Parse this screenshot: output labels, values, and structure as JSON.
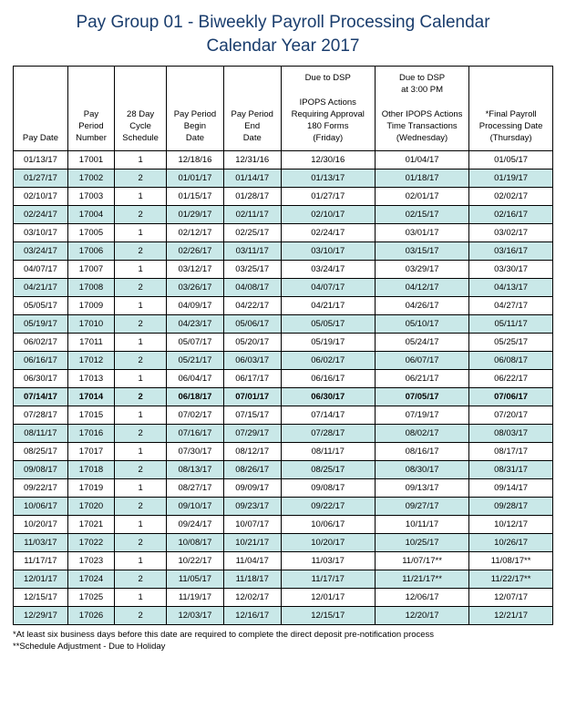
{
  "title": "Pay Group 01 - Biweekly Payroll Processing Calendar",
  "subtitle": "Calendar Year 2017",
  "colors": {
    "heading": "#1a3d6d",
    "shade": "#c9e8e8",
    "border": "#000000",
    "text": "#000000",
    "background": "#ffffff"
  },
  "fontsize": {
    "heading": 19,
    "cell": 9.5,
    "footnote": 9.5
  },
  "col_widths_pct": [
    9.5,
    8,
    9,
    10,
    10,
    17,
    17,
    15
  ],
  "headers": [
    "Pay Date",
    "Pay\nPeriod\nNumber",
    "28 Day\nCycle\nSchedule",
    "Pay Period\nBegin\nDate",
    "Pay Period\nEnd\nDate",
    "Due to DSP\n\nIPOPS Actions\nRequiring Approval\n180 Forms\n(Friday)",
    "Due to DSP\nat 3:00 PM\n\nOther IPOPS Actions\nTime Transactions\n(Wednesday)",
    "*Final Payroll\nProcessing Date\n(Thursday)"
  ],
  "rows": [
    {
      "c": [
        "01/13/17",
        "17001",
        "1",
        "12/18/16",
        "12/31/16",
        "12/30/16",
        "01/04/17",
        "01/05/17"
      ],
      "shade": false,
      "bold": false
    },
    {
      "c": [
        "01/27/17",
        "17002",
        "2",
        "01/01/17",
        "01/14/17",
        "01/13/17",
        "01/18/17",
        "01/19/17"
      ],
      "shade": true,
      "bold": false
    },
    {
      "c": [
        "02/10/17",
        "17003",
        "1",
        "01/15/17",
        "01/28/17",
        "01/27/17",
        "02/01/17",
        "02/02/17"
      ],
      "shade": false,
      "bold": false
    },
    {
      "c": [
        "02/24/17",
        "17004",
        "2",
        "01/29/17",
        "02/11/17",
        "02/10/17",
        "02/15/17",
        "02/16/17"
      ],
      "shade": true,
      "bold": false
    },
    {
      "c": [
        "03/10/17",
        "17005",
        "1",
        "02/12/17",
        "02/25/17",
        "02/24/17",
        "03/01/17",
        "03/02/17"
      ],
      "shade": false,
      "bold": false
    },
    {
      "c": [
        "03/24/17",
        "17006",
        "2",
        "02/26/17",
        "03/11/17",
        "03/10/17",
        "03/15/17",
        "03/16/17"
      ],
      "shade": true,
      "bold": false
    },
    {
      "c": [
        "04/07/17",
        "17007",
        "1",
        "03/12/17",
        "03/25/17",
        "03/24/17",
        "03/29/17",
        "03/30/17"
      ],
      "shade": false,
      "bold": false
    },
    {
      "c": [
        "04/21/17",
        "17008",
        "2",
        "03/26/17",
        "04/08/17",
        "04/07/17",
        "04/12/17",
        "04/13/17"
      ],
      "shade": true,
      "bold": false
    },
    {
      "c": [
        "05/05/17",
        "17009",
        "1",
        "04/09/17",
        "04/22/17",
        "04/21/17",
        "04/26/17",
        "04/27/17"
      ],
      "shade": false,
      "bold": false
    },
    {
      "c": [
        "05/19/17",
        "17010",
        "2",
        "04/23/17",
        "05/06/17",
        "05/05/17",
        "05/10/17",
        "05/11/17"
      ],
      "shade": true,
      "bold": false
    },
    {
      "c": [
        "06/02/17",
        "17011",
        "1",
        "05/07/17",
        "05/20/17",
        "05/19/17",
        "05/24/17",
        "05/25/17"
      ],
      "shade": false,
      "bold": false
    },
    {
      "c": [
        "06/16/17",
        "17012",
        "2",
        "05/21/17",
        "06/03/17",
        "06/02/17",
        "06/07/17",
        "06/08/17"
      ],
      "shade": true,
      "bold": false
    },
    {
      "c": [
        "06/30/17",
        "17013",
        "1",
        "06/04/17",
        "06/17/17",
        "06/16/17",
        "06/21/17",
        "06/22/17"
      ],
      "shade": false,
      "bold": false
    },
    {
      "c": [
        "07/14/17",
        "17014",
        "2",
        "06/18/17",
        "07/01/17",
        "06/30/17",
        "07/05/17",
        "07/06/17"
      ],
      "shade": true,
      "bold": true
    },
    {
      "c": [
        "07/28/17",
        "17015",
        "1",
        "07/02/17",
        "07/15/17",
        "07/14/17",
        "07/19/17",
        "07/20/17"
      ],
      "shade": false,
      "bold": false
    },
    {
      "c": [
        "08/11/17",
        "17016",
        "2",
        "07/16/17",
        "07/29/17",
        "07/28/17",
        "08/02/17",
        "08/03/17"
      ],
      "shade": true,
      "bold": false
    },
    {
      "c": [
        "08/25/17",
        "17017",
        "1",
        "07/30/17",
        "08/12/17",
        "08/11/17",
        "08/16/17",
        "08/17/17"
      ],
      "shade": false,
      "bold": false
    },
    {
      "c": [
        "09/08/17",
        "17018",
        "2",
        "08/13/17",
        "08/26/17",
        "08/25/17",
        "08/30/17",
        "08/31/17"
      ],
      "shade": true,
      "bold": false
    },
    {
      "c": [
        "09/22/17",
        "17019",
        "1",
        "08/27/17",
        "09/09/17",
        "09/08/17",
        "09/13/17",
        "09/14/17"
      ],
      "shade": false,
      "bold": false
    },
    {
      "c": [
        "10/06/17",
        "17020",
        "2",
        "09/10/17",
        "09/23/17",
        "09/22/17",
        "09/27/17",
        "09/28/17"
      ],
      "shade": true,
      "bold": false
    },
    {
      "c": [
        "10/20/17",
        "17021",
        "1",
        "09/24/17",
        "10/07/17",
        "10/06/17",
        "10/11/17",
        "10/12/17"
      ],
      "shade": false,
      "bold": false
    },
    {
      "c": [
        "11/03/17",
        "17022",
        "2",
        "10/08/17",
        "10/21/17",
        "10/20/17",
        "10/25/17",
        "10/26/17"
      ],
      "shade": true,
      "bold": false
    },
    {
      "c": [
        "11/17/17",
        "17023",
        "1",
        "10/22/17",
        "11/04/17",
        "11/03/17",
        "11/07/17**",
        "11/08/17**"
      ],
      "shade": false,
      "bold": false
    },
    {
      "c": [
        "12/01/17",
        "17024",
        "2",
        "11/05/17",
        "11/18/17",
        "11/17/17",
        "11/21/17**",
        "11/22/17**"
      ],
      "shade": true,
      "bold": false
    },
    {
      "c": [
        "12/15/17",
        "17025",
        "1",
        "11/19/17",
        "12/02/17",
        "12/01/17",
        "12/06/17",
        "12/07/17"
      ],
      "shade": false,
      "bold": false
    },
    {
      "c": [
        "12/29/17",
        "17026",
        "2",
        "12/03/17",
        "12/16/17",
        "12/15/17",
        "12/20/17",
        "12/21/17"
      ],
      "shade": true,
      "bold": false
    }
  ],
  "footnotes": [
    "*At least six business days before this date are required to complete the direct deposit pre-notification process",
    "**Schedule Adjustment - Due to Holiday"
  ]
}
